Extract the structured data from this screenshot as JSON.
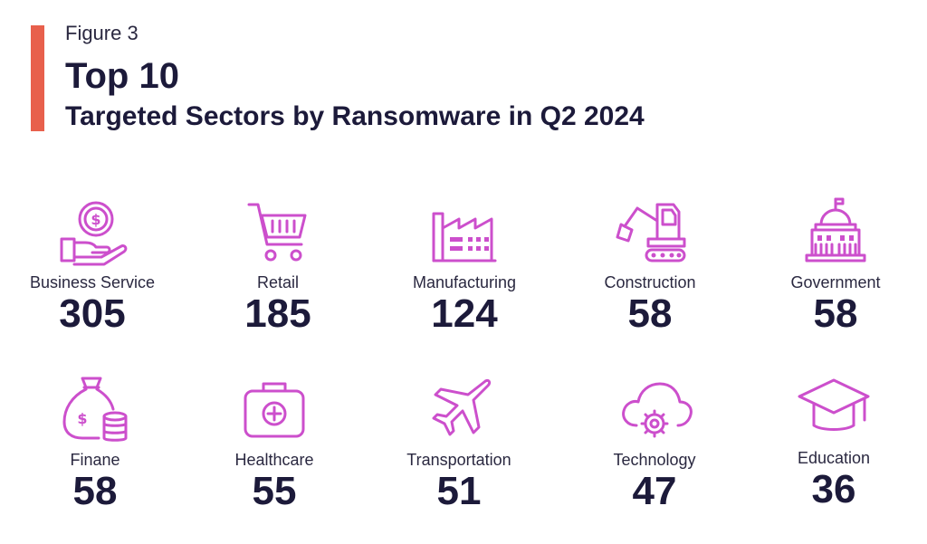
{
  "figure_label": "Figure 3",
  "title": "Top 10",
  "subtitle": "Targeted Sectors by Ransomware in Q2 2024",
  "colors": {
    "accent": "#e8604c",
    "icon": "#cc4fcc",
    "text": "#1c1a3a"
  },
  "sectors": [
    {
      "name": "Business Service",
      "count": "305",
      "icon": "hand-coin-icon"
    },
    {
      "name": "Retail",
      "count": "185",
      "icon": "shopping-cart-icon"
    },
    {
      "name": "Manufacturing",
      "count": "124",
      "icon": "factory-icon"
    },
    {
      "name": "Construction",
      "count": "58",
      "icon": "excavator-icon"
    },
    {
      "name": "Government",
      "count": "58",
      "icon": "government-building-icon"
    },
    {
      "name": "Finane",
      "count": "58",
      "icon": "money-bag-icon"
    },
    {
      "name": "Healthcare",
      "count": "55",
      "icon": "medical-kit-icon"
    },
    {
      "name": "Transportation",
      "count": "51",
      "icon": "airplane-icon"
    },
    {
      "name": "Technology",
      "count": "47",
      "icon": "cloud-gear-icon"
    },
    {
      "name": "Education",
      "count": "36",
      "icon": "graduation-cap-icon"
    }
  ]
}
